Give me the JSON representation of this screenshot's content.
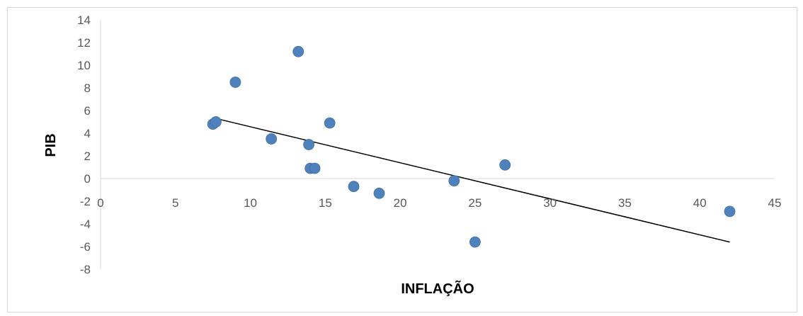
{
  "chart_data": {
    "type": "scatter",
    "title": "",
    "xlabel": "INFLAÇÃO",
    "ylabel": "PIB",
    "xlim": [
      0,
      45
    ],
    "ylim": [
      -8,
      14
    ],
    "x_ticks": [
      0,
      5,
      10,
      15,
      20,
      25,
      30,
      35,
      40,
      45
    ],
    "y_ticks": [
      14,
      12,
      10,
      8,
      6,
      4,
      2,
      0,
      -2,
      -4,
      -6,
      -8
    ],
    "x_tick_labels": [
      "0",
      "5",
      "10",
      "15",
      "20",
      "25",
      "30",
      "35",
      "40",
      "45"
    ],
    "y_tick_labels": [
      "14",
      "12",
      "10",
      "8",
      "6",
      "4",
      "2",
      "0",
      "-2",
      "-4",
      "-6",
      "-8"
    ],
    "grid": false,
    "legend": "none",
    "marker_color": "#4f81bd",
    "trendline_color": "#000000",
    "points": [
      {
        "x": 7.5,
        "y": 4.8
      },
      {
        "x": 7.7,
        "y": 5.0
      },
      {
        "x": 9.0,
        "y": 8.5
      },
      {
        "x": 11.4,
        "y": 3.5
      },
      {
        "x": 13.2,
        "y": 11.2
      },
      {
        "x": 13.9,
        "y": 3.0
      },
      {
        "x": 14.0,
        "y": 0.9
      },
      {
        "x": 14.3,
        "y": 0.9
      },
      {
        "x": 15.3,
        "y": 4.9
      },
      {
        "x": 16.9,
        "y": -0.7
      },
      {
        "x": 18.6,
        "y": -1.3
      },
      {
        "x": 23.6,
        "y": -0.2
      },
      {
        "x": 25.0,
        "y": -5.6
      },
      {
        "x": 27.0,
        "y": 1.2
      },
      {
        "x": 42.0,
        "y": -2.9
      }
    ],
    "trendline": {
      "x": [
        7.7,
        42.0
      ],
      "y": [
        5.3,
        -5.6
      ]
    }
  }
}
